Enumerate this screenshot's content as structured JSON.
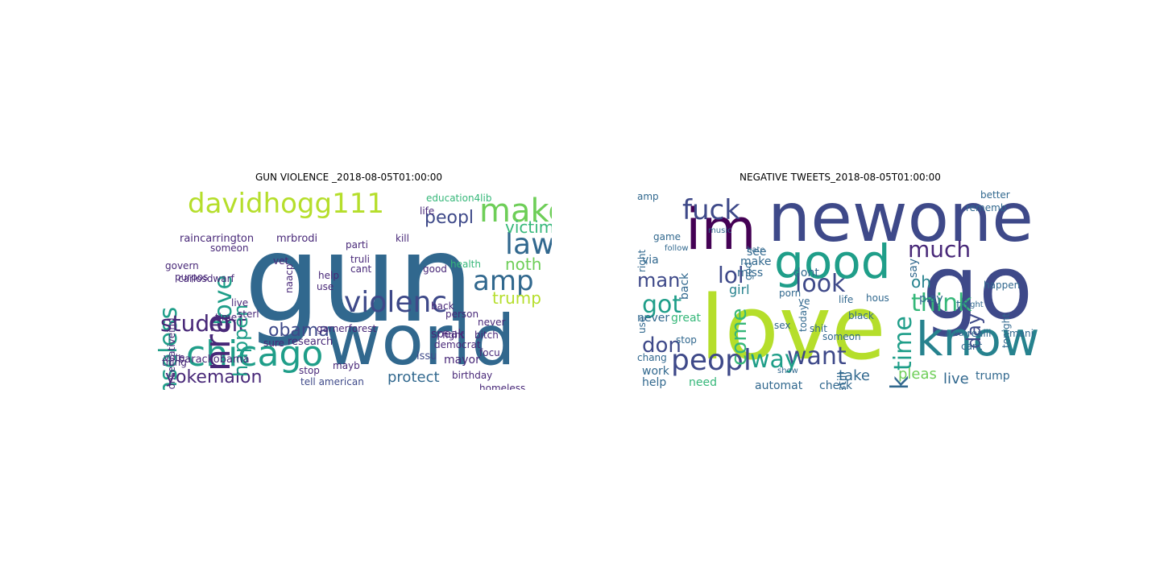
{
  "figure": {
    "left_panel": {
      "title": "GUN VIOLENCE _2018-08-05T01:00:00",
      "words": [
        "gun",
        "world",
        "chicago",
        "davidhogg111",
        "make",
        "violenc",
        "senseless",
        "amp",
        "law",
        "nra",
        "love",
        "victim",
        "student",
        "yokemalon",
        "obama",
        "peopl",
        "noth",
        "trump",
        "happen",
        "raincarrington",
        "mrbrodi",
        "protect",
        "conservativeind",
        "barackobama",
        "garnerforest",
        "research",
        "mayor",
        "democrat",
        "issu",
        "birthday",
        "homeless",
        "speak",
        "person",
        "education4lib",
        "tell american",
        "govern",
        "someon",
        "parti",
        "truli",
        "help",
        "cant",
        "life",
        "kill",
        "health",
        "good",
        "fight",
        "bitch",
        "never",
        "vote",
        "live",
        "thing",
        "use",
        "sterl",
        "sure",
        "mayb",
        "stop",
        "back",
        "purpos",
        "focu",
        "time",
        "naacp",
        "vet",
        "carlosdwarf"
      ],
      "colors": [
        "#440154",
        "#482878",
        "#3e4989",
        "#31688e",
        "#26828e",
        "#1f9e89",
        "#35b779",
        "#6ece58",
        "#b5de2b",
        "#fde725"
      ]
    },
    "right_panel": {
      "title": "NEGATIVE TWEETS_2018-08-05T01:00:00",
      "words": [
        "love",
        "go",
        "newone",
        "im",
        "know",
        "good",
        "peopl",
        "want",
        "way",
        "fuck",
        "got",
        "lol",
        "look",
        "time",
        "think",
        "much",
        "thank",
        "come",
        "don",
        "day",
        "man",
        "take",
        "pleas",
        "live",
        "trump",
        "automat",
        "check",
        "oh",
        "play",
        "say",
        "tri",
        "tonight",
        "happen",
        "better",
        "rememb",
        "girl",
        "miss",
        "porn",
        "sex",
        "dont",
        "still",
        "someon",
        "black",
        "shit",
        "today",
        "make",
        "see",
        "game",
        "music",
        "hate",
        "amp",
        "via",
        "right",
        "back",
        "never",
        "work",
        "help",
        "need",
        "chang",
        "use",
        "stop",
        "great",
        "show",
        "god",
        "cant",
        "mani",
        "realli",
        "alway",
        "night",
        "life",
        "hous",
        "follow",
        "ye"
      ],
      "colors": [
        "#440154",
        "#482878",
        "#3e4989",
        "#31688e",
        "#26828e",
        "#1f9e89",
        "#35b779",
        "#6ece58",
        "#b5de2b",
        "#fde725"
      ]
    }
  }
}
